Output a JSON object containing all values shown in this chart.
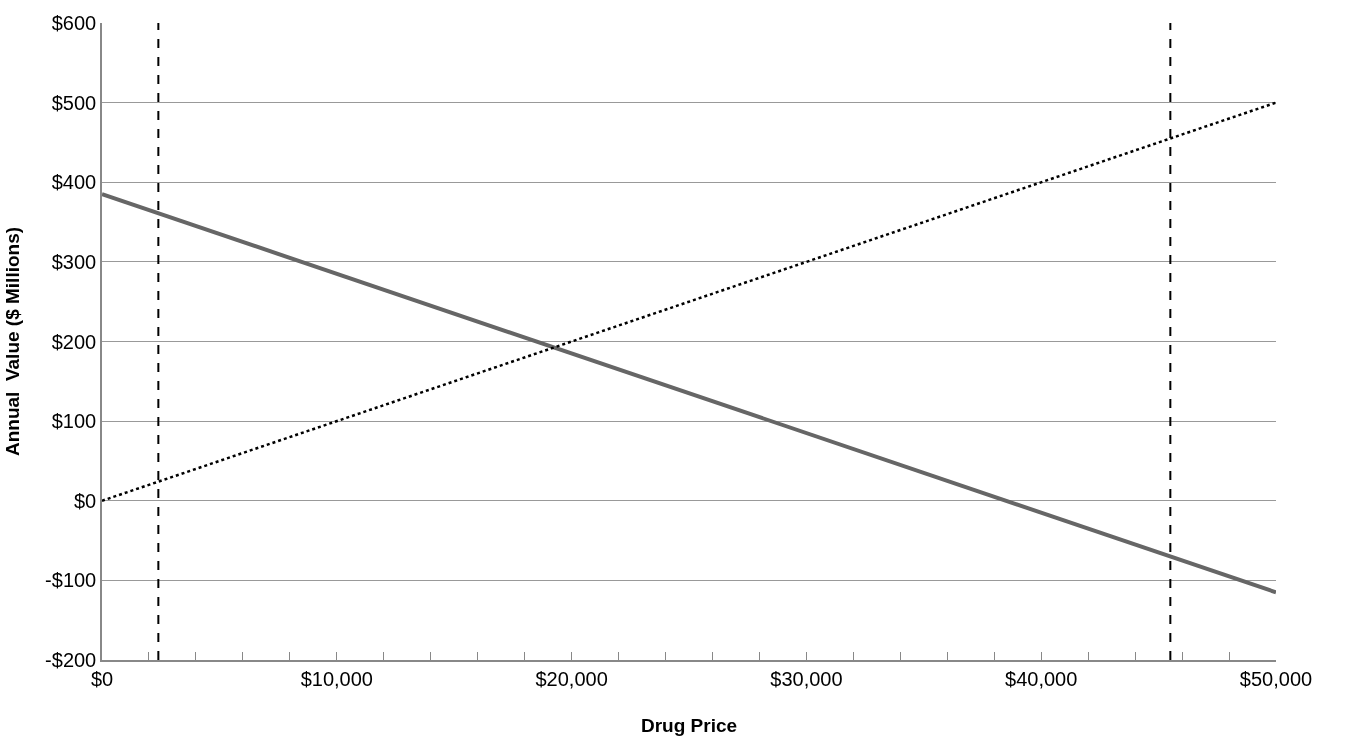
{
  "chart_data": {
    "type": "line",
    "xlabel": "Drug Price",
    "ylabel": "Annual  Value ($ Millions)",
    "xlim": [
      0,
      50000
    ],
    "ylim": [
      -200,
      600
    ],
    "xticks": [
      {
        "value": 0,
        "label": "$0"
      },
      {
        "value": 2000,
        "label": null
      },
      {
        "value": 4000,
        "label": null
      },
      {
        "value": 6000,
        "label": null
      },
      {
        "value": 8000,
        "label": null
      },
      {
        "value": 10000,
        "label": "$10,000"
      },
      {
        "value": 12000,
        "label": null
      },
      {
        "value": 14000,
        "label": null
      },
      {
        "value": 16000,
        "label": null
      },
      {
        "value": 18000,
        "label": null
      },
      {
        "value": 20000,
        "label": "$20,000"
      },
      {
        "value": 22000,
        "label": null
      },
      {
        "value": 24000,
        "label": null
      },
      {
        "value": 26000,
        "label": null
      },
      {
        "value": 28000,
        "label": null
      },
      {
        "value": 30000,
        "label": "$30,000"
      },
      {
        "value": 32000,
        "label": null
      },
      {
        "value": 34000,
        "label": null
      },
      {
        "value": 36000,
        "label": null
      },
      {
        "value": 38000,
        "label": null
      },
      {
        "value": 40000,
        "label": "$40,000"
      },
      {
        "value": 42000,
        "label": null
      },
      {
        "value": 44000,
        "label": null
      },
      {
        "value": 46000,
        "label": null
      },
      {
        "value": 48000,
        "label": null
      },
      {
        "value": 50000,
        "label": "$50,000"
      }
    ],
    "yticks": [
      {
        "value": -200,
        "label": "-$200"
      },
      {
        "value": -100,
        "label": "-$100"
      },
      {
        "value": 0,
        "label": "$0"
      },
      {
        "value": 100,
        "label": "$100"
      },
      {
        "value": 200,
        "label": "$200"
      },
      {
        "value": 300,
        "label": "$300"
      },
      {
        "value": 400,
        "label": "$400"
      },
      {
        "value": 500,
        "label": "$500"
      },
      {
        "value": 600,
        "label": "$600"
      }
    ],
    "x": [
      0,
      50000
    ],
    "grid": "y",
    "marker": "none",
    "series": [
      {
        "values": [
          385,
          -115
        ],
        "color": "#666666",
        "line_style": "solid"
      },
      {
        "values": [
          0,
          500
        ],
        "color": "#000000",
        "line_style": "dotted"
      }
    ],
    "ref_lines": [
      {
        "axis": "x",
        "value": 2400,
        "color": "#000000",
        "line_style": "dashed"
      },
      {
        "axis": "x",
        "value": 45500,
        "color": "#000000",
        "line_style": "dashed"
      }
    ]
  }
}
